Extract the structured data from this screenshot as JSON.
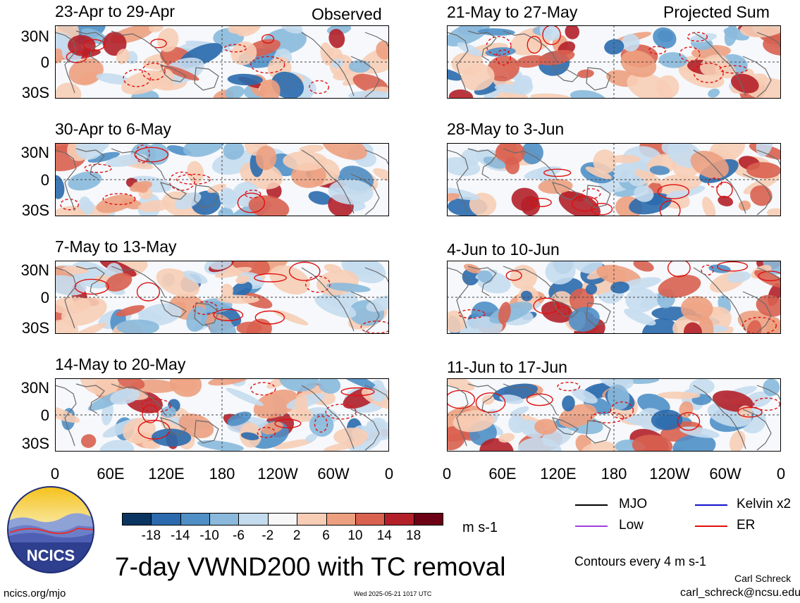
{
  "header": {
    "left_label": "Observed",
    "right_label": "Projected Sum"
  },
  "panels_left": [
    {
      "title": "23-Apr to 29-Apr"
    },
    {
      "title": "30-Apr to 6-May"
    },
    {
      "title": "7-May to 13-May"
    },
    {
      "title": "14-May to 20-May"
    }
  ],
  "panels_right": [
    {
      "title": "21-May to 27-May"
    },
    {
      "title": "28-May to 3-Jun"
    },
    {
      "title": "4-Jun to 10-Jun"
    },
    {
      "title": "11-Jun to 17-Jun"
    }
  ],
  "y_ticks": [
    "30N",
    "0",
    "30S"
  ],
  "x_ticks": [
    "0",
    "60E",
    "120E",
    "180",
    "120W",
    "60W",
    "0"
  ],
  "colorbar": {
    "labels": [
      "-18",
      "-14",
      "-10",
      "-6",
      "-2",
      "2",
      "6",
      "10",
      "14",
      "18"
    ],
    "colors": [
      "#0b3561",
      "#2a6aad",
      "#4f8fc6",
      "#8ab9dc",
      "#c5dcee",
      "#f7f7f7",
      "#f7cdb5",
      "#eda07f",
      "#d9614f",
      "#b42029",
      "#6c0014"
    ],
    "units": "m s-1"
  },
  "legend": {
    "mjo": "MJO",
    "kelvin": "Kelvin x2",
    "low": "Low",
    "er": "ER",
    "colors": {
      "mjo": "#000000",
      "kelvin": "#1111cc",
      "low": "#a040e0",
      "er": "#e01010"
    },
    "contours_note": "Contours every 4 m s-1"
  },
  "logo": {
    "text": "NCICS",
    "url": "ncics.org/mjo"
  },
  "main_title": "7-day VWND200 with TC removal",
  "timestamp": "Wed 2025-05-21 1017 UTC",
  "author": {
    "name": "Carl Schreck",
    "email": "carl_schreck@ncsu.edu"
  }
}
